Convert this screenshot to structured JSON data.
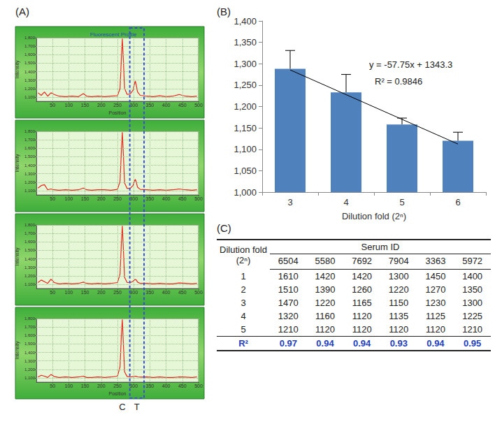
{
  "panel_labels": [
    "(A)",
    "(B)",
    "(C)"
  ],
  "chart_data": [
    {
      "type": "line",
      "title": "Fluorescent Profile",
      "x_label": "Position",
      "y_label": "Intensity",
      "color": "#e8261c",
      "grid": true,
      "x": [
        5,
        15,
        25,
        35,
        45,
        55,
        70,
        90,
        110,
        130,
        145,
        155,
        170,
        190,
        210,
        230,
        250,
        258,
        262,
        265,
        268,
        272,
        280,
        290,
        298,
        302,
        305,
        308,
        312,
        320,
        340,
        360,
        380,
        400,
        420,
        440,
        460,
        480,
        495
      ],
      "values": [
        1150,
        1120,
        1160,
        1110,
        1150,
        1130,
        1110,
        1105,
        1110,
        1105,
        1140,
        1110,
        1105,
        1110,
        1105,
        1110,
        1115,
        1200,
        1550,
        1790,
        1550,
        1200,
        1130,
        1140,
        1180,
        1250,
        1290,
        1240,
        1160,
        1120,
        1110,
        1105,
        1115,
        1105,
        1110,
        1130,
        1110,
        1105,
        1110
      ],
      "xlim": [
        0,
        500
      ],
      "xticks": [
        50,
        100,
        150,
        200,
        250,
        300,
        350,
        400,
        450,
        500
      ],
      "ylim": [
        1050,
        1800
      ],
      "yticks": [
        {
          "value": 1100,
          "label": "1,100"
        },
        {
          "value": 1200,
          "label": "1,200"
        },
        {
          "value": 1300,
          "label": "1,300"
        },
        {
          "value": 1400,
          "label": "1,400"
        },
        {
          "value": 1500,
          "label": "1,500"
        },
        {
          "value": 1600,
          "label": "1,600"
        },
        {
          "value": 1700,
          "label": "1,700"
        },
        {
          "value": 1800,
          "label": "1,800"
        }
      ]
    },
    {
      "type": "line",
      "y_label": "Intensity",
      "color": "#e8261c",
      "grid": true,
      "x": [
        5,
        15,
        25,
        35,
        45,
        55,
        70,
        90,
        110,
        130,
        145,
        155,
        170,
        190,
        210,
        230,
        250,
        258,
        262,
        265,
        268,
        272,
        280,
        290,
        298,
        302,
        305,
        308,
        312,
        320,
        340,
        360,
        380,
        400,
        420,
        440,
        460,
        480,
        495
      ],
      "values": [
        1130,
        1160,
        1170,
        1110,
        1120,
        1110,
        1105,
        1110,
        1105,
        1110,
        1130,
        1110,
        1105,
        1110,
        1110,
        1105,
        1115,
        1210,
        1560,
        1790,
        1540,
        1190,
        1125,
        1130,
        1160,
        1210,
        1233,
        1200,
        1140,
        1115,
        1110,
        1105,
        1110,
        1105,
        1110,
        1120,
        1110,
        1105,
        1110
      ],
      "xlim": [
        0,
        500
      ],
      "xticks": [
        50,
        100,
        150,
        200,
        250,
        300,
        350,
        400,
        450,
        500
      ],
      "ylim": [
        1050,
        1800
      ],
      "yticks": [
        {
          "value": 1100,
          "label": "1,100"
        },
        {
          "value": 1200,
          "label": "1,200"
        },
        {
          "value": 1300,
          "label": "1,300"
        },
        {
          "value": 1400,
          "label": "1,400"
        },
        {
          "value": 1500,
          "label": "1,500"
        },
        {
          "value": 1600,
          "label": "1,600"
        },
        {
          "value": 1700,
          "label": "1,700"
        },
        {
          "value": 1800,
          "label": "1,800"
        }
      ]
    },
    {
      "type": "line",
      "y_label": "Intensity",
      "color": "#e8261c",
      "grid": true,
      "x": [
        5,
        15,
        25,
        35,
        45,
        55,
        70,
        90,
        110,
        130,
        145,
        155,
        170,
        190,
        210,
        230,
        250,
        258,
        262,
        265,
        268,
        272,
        280,
        290,
        298,
        302,
        305,
        308,
        312,
        320,
        340,
        360,
        380,
        400,
        420,
        440,
        460,
        480,
        495
      ],
      "values": [
        1120,
        1150,
        1130,
        1110,
        1160,
        1120,
        1105,
        1110,
        1105,
        1110,
        1125,
        1110,
        1105,
        1110,
        1105,
        1110,
        1120,
        1220,
        1580,
        1790,
        1530,
        1180,
        1120,
        1120,
        1135,
        1150,
        1158,
        1150,
        1125,
        1110,
        1110,
        1105,
        1110,
        1105,
        1105,
        1115,
        1110,
        1105,
        1110
      ],
      "xlim": [
        0,
        500
      ],
      "xticks": [
        50,
        100,
        150,
        200,
        250,
        300,
        350,
        400,
        450,
        500
      ],
      "ylim": [
        1050,
        1800
      ],
      "yticks": [
        {
          "value": 1100,
          "label": "1,100"
        },
        {
          "value": 1200,
          "label": "1,200"
        },
        {
          "value": 1300,
          "label": "1,300"
        },
        {
          "value": 1400,
          "label": "1,400"
        },
        {
          "value": 1500,
          "label": "1,500"
        },
        {
          "value": 1600,
          "label": "1,600"
        },
        {
          "value": 1700,
          "label": "1,700"
        },
        {
          "value": 1800,
          "label": "1,800"
        }
      ]
    },
    {
      "type": "line",
      "x_label": "Position",
      "y_label": "Intensity",
      "color": "#e8261c",
      "grid": true,
      "x": [
        5,
        15,
        25,
        35,
        45,
        55,
        70,
        90,
        110,
        130,
        145,
        155,
        170,
        190,
        210,
        230,
        250,
        258,
        262,
        265,
        268,
        272,
        280,
        290,
        298,
        302,
        305,
        308,
        312,
        320,
        340,
        360,
        380,
        400,
        420,
        440,
        460,
        480,
        495
      ],
      "values": [
        1110,
        1130,
        1120,
        1105,
        1140,
        1115,
        1105,
        1110,
        1105,
        1110,
        1120,
        1105,
        1105,
        1110,
        1105,
        1110,
        1120,
        1230,
        1600,
        1790,
        1520,
        1170,
        1115,
        1110,
        1115,
        1118,
        1120,
        1117,
        1112,
        1108,
        1110,
        1105,
        1110,
        1105,
        1105,
        1110,
        1108,
        1105,
        1110
      ],
      "xlim": [
        0,
        500
      ],
      "xticks": [
        50,
        100,
        150,
        200,
        250,
        300,
        350,
        400,
        450,
        500
      ],
      "ylim": [
        1050,
        1800
      ],
      "yticks": [
        {
          "value": 1100,
          "label": "1,100"
        },
        {
          "value": 1200,
          "label": "1,200"
        },
        {
          "value": 1300,
          "label": "1,300"
        },
        {
          "value": 1400,
          "label": "1,400"
        },
        {
          "value": 1500,
          "label": "1,500"
        },
        {
          "value": 1600,
          "label": "1,600"
        },
        {
          "value": 1700,
          "label": "1,700"
        },
        {
          "value": 1800,
          "label": "1,800"
        }
      ]
    },
    {
      "type": "bar",
      "x_label": "Dilution fold (2ⁿ)",
      "categories": [
        "3",
        "4",
        "5",
        "6"
      ],
      "values": [
        1288,
        1233,
        1158,
        1120
      ],
      "errors": [
        43,
        42,
        15,
        20
      ],
      "color": "#4f81bd",
      "ylim": [
        1000,
        1400
      ],
      "yticks": [
        1000,
        1050,
        1100,
        1150,
        1200,
        1250,
        1300,
        1350,
        1400
      ],
      "grid": false,
      "trendline": {
        "values": [
          1285.55,
          1227.8,
          1170.05,
          1112.3
        ],
        "color": "#000000"
      },
      "annotations": [
        "y = -57.75x + 1343.3",
        "R² = 0.9846"
      ]
    }
  ],
  "band": {
    "x": [
      288,
      332
    ],
    "color": "#3a4fd0"
  },
  "band_labels": [
    {
      "text": "C",
      "x": 265
    },
    {
      "text": "T",
      "x": 310
    }
  ],
  "table": {
    "header": "Dilution fold (2ⁿ)",
    "group": "Serum ID",
    "columns": [
      "6504",
      "5580",
      "7692",
      "7904",
      "3363",
      "5972"
    ],
    "rows": [
      {
        "label": "1",
        "values": [
          1610,
          1420,
          1420,
          1300,
          1450,
          1400
        ]
      },
      {
        "label": "2",
        "values": [
          1510,
          1390,
          1260,
          1220,
          1270,
          1350
        ]
      },
      {
        "label": "3",
        "values": [
          1470,
          1220,
          1165,
          1150,
          1230,
          1300
        ]
      },
      {
        "label": "4",
        "values": [
          1320,
          1160,
          1120,
          1135,
          1125,
          1225
        ]
      },
      {
        "label": "5",
        "values": [
          1210,
          1120,
          1120,
          1120,
          1120,
          1210
        ]
      }
    ],
    "summary": {
      "label": "R²",
      "values": [
        0.97,
        0.94,
        0.94,
        0.93,
        0.94,
        0.95
      ]
    }
  }
}
